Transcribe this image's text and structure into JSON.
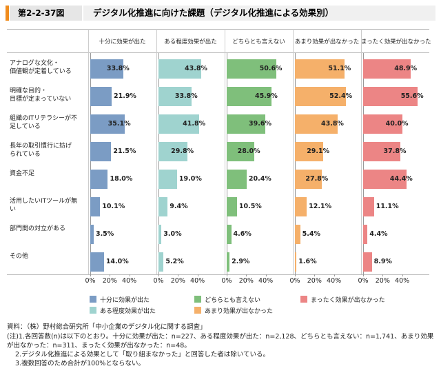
{
  "chart_data": {
    "type": "bar",
    "orientation": "horizontal",
    "figure_number": "第2-2-37図",
    "title": "デジタル化推進に向けた課題（デジタル化推進による効果別）",
    "categories": [
      "アナログな文化・\n価値観が定着している",
      "明確な目的・\n目標が定まっていない",
      "組織のITリテラシーが不\n足している",
      "長年の取引慣行に妨げ\nられている",
      "資金不足",
      "活用したいITツールが無\nい",
      "部門間の対立がある",
      "その他"
    ],
    "series": [
      {
        "name": "十分に効果が出た",
        "color": "#7b9cc4",
        "values": [
          33.8,
          21.9,
          35.1,
          21.5,
          18.0,
          10.1,
          3.5,
          14.0
        ],
        "value_labels": [
          "33.8%",
          "21.9%",
          "35.1%",
          "21.5%",
          "18.0%",
          "10.1%",
          "3.5%",
          "14.0%"
        ]
      },
      {
        "name": "ある程度効果が出た",
        "color": "#9fd3cf",
        "values": [
          43.8,
          33.8,
          41.8,
          29.8,
          19.0,
          9.4,
          3.0,
          5.2
        ],
        "value_labels": [
          "43.8%",
          "33.8%",
          "41.8%",
          "29.8%",
          "19.0%",
          "9.4%",
          "3.0%",
          "5.2%"
        ]
      },
      {
        "name": "どちらとも言えない",
        "color": "#7fbf7b",
        "values": [
          50.6,
          45.9,
          39.6,
          28.0,
          20.4,
          10.5,
          4.6,
          2.9
        ],
        "value_labels": [
          "50.6%",
          "45.9%",
          "39.6%",
          "28.0%",
          "20.4%",
          "10.5%",
          "4.6%",
          "2.9%"
        ]
      },
      {
        "name": "あまり効果が出なかった",
        "color": "#f5b06a",
        "values": [
          51.1,
          52.4,
          43.8,
          29.1,
          27.8,
          12.1,
          5.4,
          1.6
        ],
        "value_labels": [
          "51.1%",
          "52.4%",
          "43.8%",
          "29.1%",
          "27.8%",
          "12.1%",
          "5.4%",
          "1.6%"
        ]
      },
      {
        "name": "まったく効果が出なかった",
        "color": "#ec8585",
        "values": [
          48.9,
          55.6,
          40.0,
          37.8,
          44.4,
          11.1,
          4.4,
          8.9
        ],
        "value_labels": [
          "48.9%",
          "55.6%",
          "40.0%",
          "37.8%",
          "44.4%",
          "11.1%",
          "4.4%",
          "8.9%"
        ]
      }
    ],
    "xlim": [
      0,
      65
    ],
    "xticks": [
      {
        "value": 0,
        "label": "0%"
      },
      {
        "value": 20,
        "label": "20%"
      },
      {
        "value": 40,
        "label": "40%"
      }
    ],
    "source": "資料：（株）野村総合研究所「中小企業のデジタル化に関する調査」",
    "notes": [
      "(注)1.各回答数(n)は以下のとおり。十分に効果が出た：n=227、ある程度効果が出た：n=2,128、どちらとも言えない：n=1,741、あまり効果が出なかった：n=311、まったく効果が出なかった：n=48。",
      "2.デジタル化推進による効果として「取り組まなかった」と回答した者は除いている。",
      "3.複数回答のため合計が100%とならない。"
    ]
  }
}
